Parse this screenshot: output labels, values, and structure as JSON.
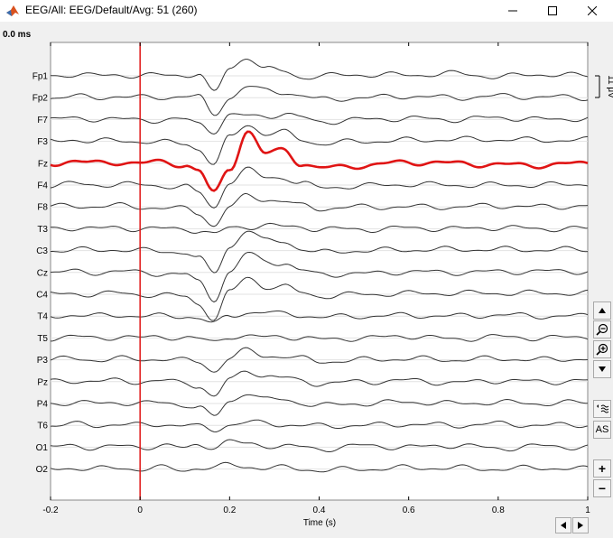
{
  "window": {
    "title": "EEG/All: EEG/Default/Avg: 51 (260)",
    "minimize_icon": "minimize-icon",
    "maximize_icon": "maximize-icon",
    "close_icon": "close-icon",
    "app_icon": "matlab-icon"
  },
  "time_readout": "0.0 ms",
  "scale_label": "11 μV",
  "colors": {
    "trace": "#333333",
    "highlight_trace": "#e01414",
    "cursor": "#e01414",
    "grid": "#e2e2e2",
    "background": "#ffffff"
  },
  "toolbar": {
    "scroll_up_icon": "triangle-up-icon",
    "zoom_out_icon": "zoom-out-icon",
    "zoom_in_icon": "zoom-in-icon",
    "scroll_down_icon": "triangle-down-icon",
    "montage_icon": "montage-icon",
    "autoscale_label": "AS",
    "gain_increase_label": "+",
    "gain_decrease_label": "−",
    "prev_page_icon": "triangle-left-icon",
    "next_page_icon": "triangle-right-icon"
  },
  "chart_data": {
    "type": "line",
    "xlabel": "Time (s)",
    "ylabel": "",
    "xlim": [
      -0.2,
      1.0
    ],
    "xticks": [
      -0.2,
      0,
      0.2,
      0.4,
      0.6,
      0.8,
      1
    ],
    "xtick_labels": [
      "-0.2",
      "0",
      "0.2",
      "0.4",
      "0.6",
      "0.8",
      "1"
    ],
    "grid": true,
    "cursor_time": 0.0,
    "highlighted_channel": "Fz",
    "channels": [
      "Fp1",
      "Fp2",
      "F7",
      "F3",
      "Fz",
      "F4",
      "F8",
      "T3",
      "C3",
      "Cz",
      "C4",
      "T4",
      "T5",
      "P3",
      "Pz",
      "P4",
      "T6",
      "O1",
      "O2"
    ],
    "x": [
      -0.2,
      -0.15,
      -0.1,
      -0.05,
      0,
      0.05,
      0.1,
      0.13,
      0.165,
      0.2,
      0.24,
      0.28,
      0.32,
      0.36,
      0.4,
      0.5,
      0.6,
      0.7,
      0.8,
      0.9,
      1.0
    ],
    "series": [
      {
        "name": "Fp1",
        "values": [
          0,
          0.4,
          0,
          0.3,
          0,
          0.2,
          0.2,
          0.6,
          -4.5,
          2,
          5,
          1.8,
          1.2,
          -0.4,
          0,
          0.3,
          0.2,
          0.6,
          -0.2,
          0.4,
          0
        ]
      },
      {
        "name": "Fp2",
        "values": [
          0,
          0.3,
          0,
          0.4,
          0,
          0.1,
          0.4,
          0.2,
          -4.5,
          0,
          3,
          1.8,
          1.5,
          0.6,
          -0.5,
          0,
          0.4,
          0,
          0.4,
          0.2,
          0
        ]
      },
      {
        "name": "F7",
        "values": [
          0,
          0.3,
          0.2,
          0,
          0,
          -0.2,
          0,
          -1,
          -3,
          1,
          1,
          0.9,
          1.5,
          0.5,
          -0.6,
          0,
          0.3,
          0,
          0.5,
          0,
          0.3
        ]
      },
      {
        "name": "F3",
        "values": [
          0,
          0.5,
          0,
          0.2,
          0,
          -0.3,
          -0.5,
          -2,
          -6,
          1,
          4.5,
          2,
          2.4,
          0.5,
          -0.6,
          0,
          0.3,
          0.5,
          0.5,
          0.3,
          0.4
        ]
      },
      {
        "name": "Fz",
        "values": [
          0,
          0.5,
          0,
          0.3,
          0,
          0.3,
          -0.4,
          -2,
          -7.8,
          -1.5,
          8.5,
          2.5,
          3.5,
          0,
          -1.3,
          -0.6,
          0.3,
          0,
          -0.4,
          -0.5,
          0
        ]
      },
      {
        "name": "F4",
        "values": [
          0,
          0.3,
          0,
          0.3,
          0,
          -0.2,
          -0.4,
          -2,
          -6,
          1,
          4,
          2,
          2,
          0.5,
          -0.7,
          -0.2,
          0.2,
          0,
          0,
          0,
          0.3
        ]
      },
      {
        "name": "F8",
        "values": [
          0,
          0.3,
          0.1,
          0.3,
          0,
          -0.3,
          -0.5,
          -1.5,
          -5,
          0,
          3,
          2,
          1.5,
          0.3,
          -0.4,
          0,
          0,
          0,
          0.3,
          0,
          0.3
        ]
      },
      {
        "name": "T3",
        "values": [
          0,
          0.3,
          0,
          0.3,
          0,
          0,
          0,
          -0.5,
          -1.5,
          0.2,
          0.5,
          1,
          0.5,
          0.4,
          0,
          -0.2,
          0.2,
          0,
          0.3,
          0,
          0
        ]
      },
      {
        "name": "C3",
        "values": [
          0,
          0.3,
          0,
          0.3,
          0,
          -0.2,
          -0.4,
          -2,
          -6,
          1,
          5.5,
          2.5,
          2.5,
          0.5,
          -0.5,
          0,
          0.2,
          0.3,
          0.3,
          0.2,
          0.3
        ]
      },
      {
        "name": "Cz",
        "values": [
          0,
          0.2,
          0,
          0.3,
          0,
          -0.3,
          -0.5,
          -2.5,
          -7,
          0,
          5,
          3,
          2.5,
          0.5,
          -0.5,
          -0.3,
          0.2,
          0,
          0.2,
          0.3,
          0.3
        ]
      },
      {
        "name": "C4",
        "values": [
          0,
          0.2,
          0,
          0.3,
          0,
          -0.3,
          -0.5,
          -2.5,
          -6.5,
          0.5,
          4.5,
          2,
          2,
          0.5,
          -0.5,
          0,
          0.2,
          0.3,
          0.3,
          0.3,
          0.3
        ]
      },
      {
        "name": "T4",
        "values": [
          0,
          0.3,
          0,
          0.3,
          0,
          0,
          0,
          -0.5,
          -2,
          0,
          1,
          1,
          0.5,
          0.3,
          -0.3,
          0,
          0.2,
          0,
          0.3,
          0,
          0
        ]
      },
      {
        "name": "T5",
        "values": [
          0,
          0.3,
          0,
          0.3,
          0,
          0.4,
          0,
          -0.3,
          -1,
          0.5,
          0.3,
          0.2,
          0.5,
          0,
          -0.4,
          0,
          0.5,
          -0.3,
          0.3,
          0,
          0.3
        ]
      },
      {
        "name": "P3",
        "values": [
          0,
          0.3,
          0,
          0.3,
          0,
          0.3,
          -0.2,
          -0.5,
          -3,
          0.5,
          2.5,
          1,
          1,
          0.3,
          -0.5,
          0,
          0.3,
          0,
          0.3,
          0,
          0.3
        ]
      },
      {
        "name": "Pz",
        "values": [
          0,
          0.3,
          0,
          0.3,
          0,
          0.2,
          -0.3,
          -1,
          -4,
          0.5,
          3,
          1.5,
          1,
          0.2,
          -0.5,
          0,
          0.3,
          -0.3,
          0.3,
          0,
          0.2
        ]
      },
      {
        "name": "P4",
        "values": [
          0,
          0.3,
          0,
          0.3,
          0,
          0.2,
          -0.3,
          -1,
          -3.5,
          0.5,
          3,
          1,
          1,
          0.2,
          -0.5,
          0,
          0.4,
          0,
          0.3,
          0,
          0.3
        ]
      },
      {
        "name": "T6",
        "values": [
          0,
          0.3,
          0,
          0.3,
          0,
          0.3,
          0,
          -0.4,
          -1.2,
          0.2,
          0.8,
          0.5,
          0.2,
          0,
          -0.2,
          0,
          0.3,
          0,
          0.4,
          0,
          0.2
        ]
      },
      {
        "name": "O1",
        "values": [
          0,
          0.3,
          0,
          0.2,
          0,
          0.5,
          -0.3,
          0.6,
          0.2,
          1.5,
          0.8,
          0.5,
          0.3,
          0,
          -0.5,
          0.4,
          0,
          0.5,
          -0.3,
          0.3,
          0
        ]
      },
      {
        "name": "O2",
        "values": [
          0,
          0.3,
          0,
          0.3,
          0,
          0.3,
          -0.3,
          0.4,
          0.2,
          1.2,
          0.6,
          0.3,
          0.3,
          0,
          -0.3,
          0,
          0.3,
          0.3,
          0,
          0.3,
          0
        ]
      }
    ]
  }
}
